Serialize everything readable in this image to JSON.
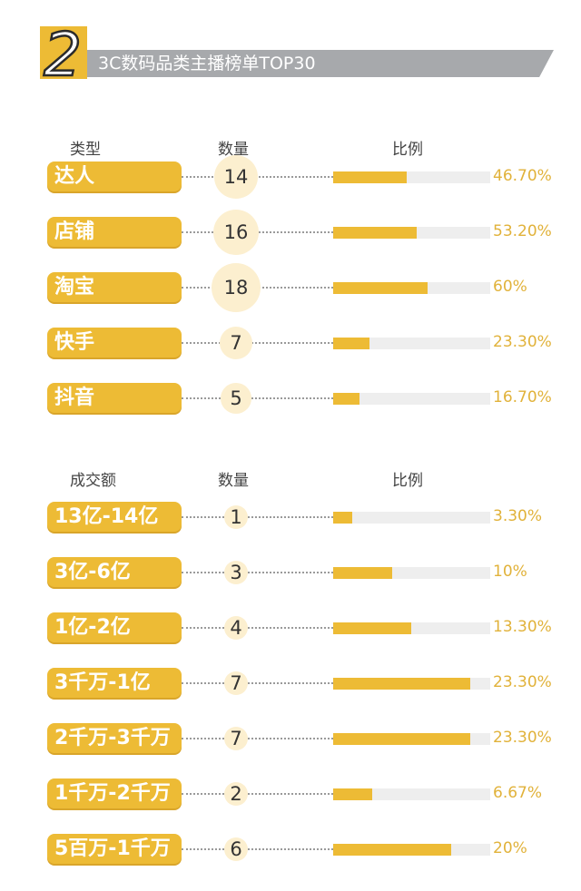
{
  "header": {
    "number": "2",
    "title": "3C数码品类主播榜单TOP30"
  },
  "colors": {
    "accent": "#edbb35",
    "pct_text": "#e1b23a",
    "track": "#eeeeee",
    "circle": "#fcefcf"
  },
  "chart_data": [
    {
      "type": "bar",
      "headers": {
        "category": "类型",
        "count": "数量",
        "ratio": "比例"
      },
      "categories": [
        "达人",
        "店铺",
        "淘宝",
        "快手",
        "抖音"
      ],
      "counts": [
        "14",
        "16",
        "18",
        "7",
        "5"
      ],
      "values": [
        46.7,
        53.2,
        60,
        23.3,
        16.7
      ],
      "value_labels": [
        "46.70%",
        "53.20%",
        "60%",
        "23.30%",
        "16.70%"
      ],
      "xlim": [
        0,
        100
      ]
    },
    {
      "type": "bar",
      "headers": {
        "category": "成交额",
        "count": "数量",
        "ratio": "比例"
      },
      "categories": [
        "13亿-14亿",
        "3亿-6亿",
        "1亿-2亿",
        "3千万-1亿",
        "2千万-3千万",
        "1千万-2千万",
        "5百万-1千万"
      ],
      "counts": [
        "1",
        "3",
        "4",
        "7",
        "7",
        "2",
        "6"
      ],
      "values": [
        3.3,
        10,
        13.3,
        23.3,
        23.3,
        6.67,
        20
      ],
      "value_labels": [
        "3.30%",
        "10%",
        "13.30%",
        "23.30%",
        "23.30%",
        "6.67%",
        "20%"
      ],
      "xlim": [
        0,
        26.67
      ]
    }
  ]
}
